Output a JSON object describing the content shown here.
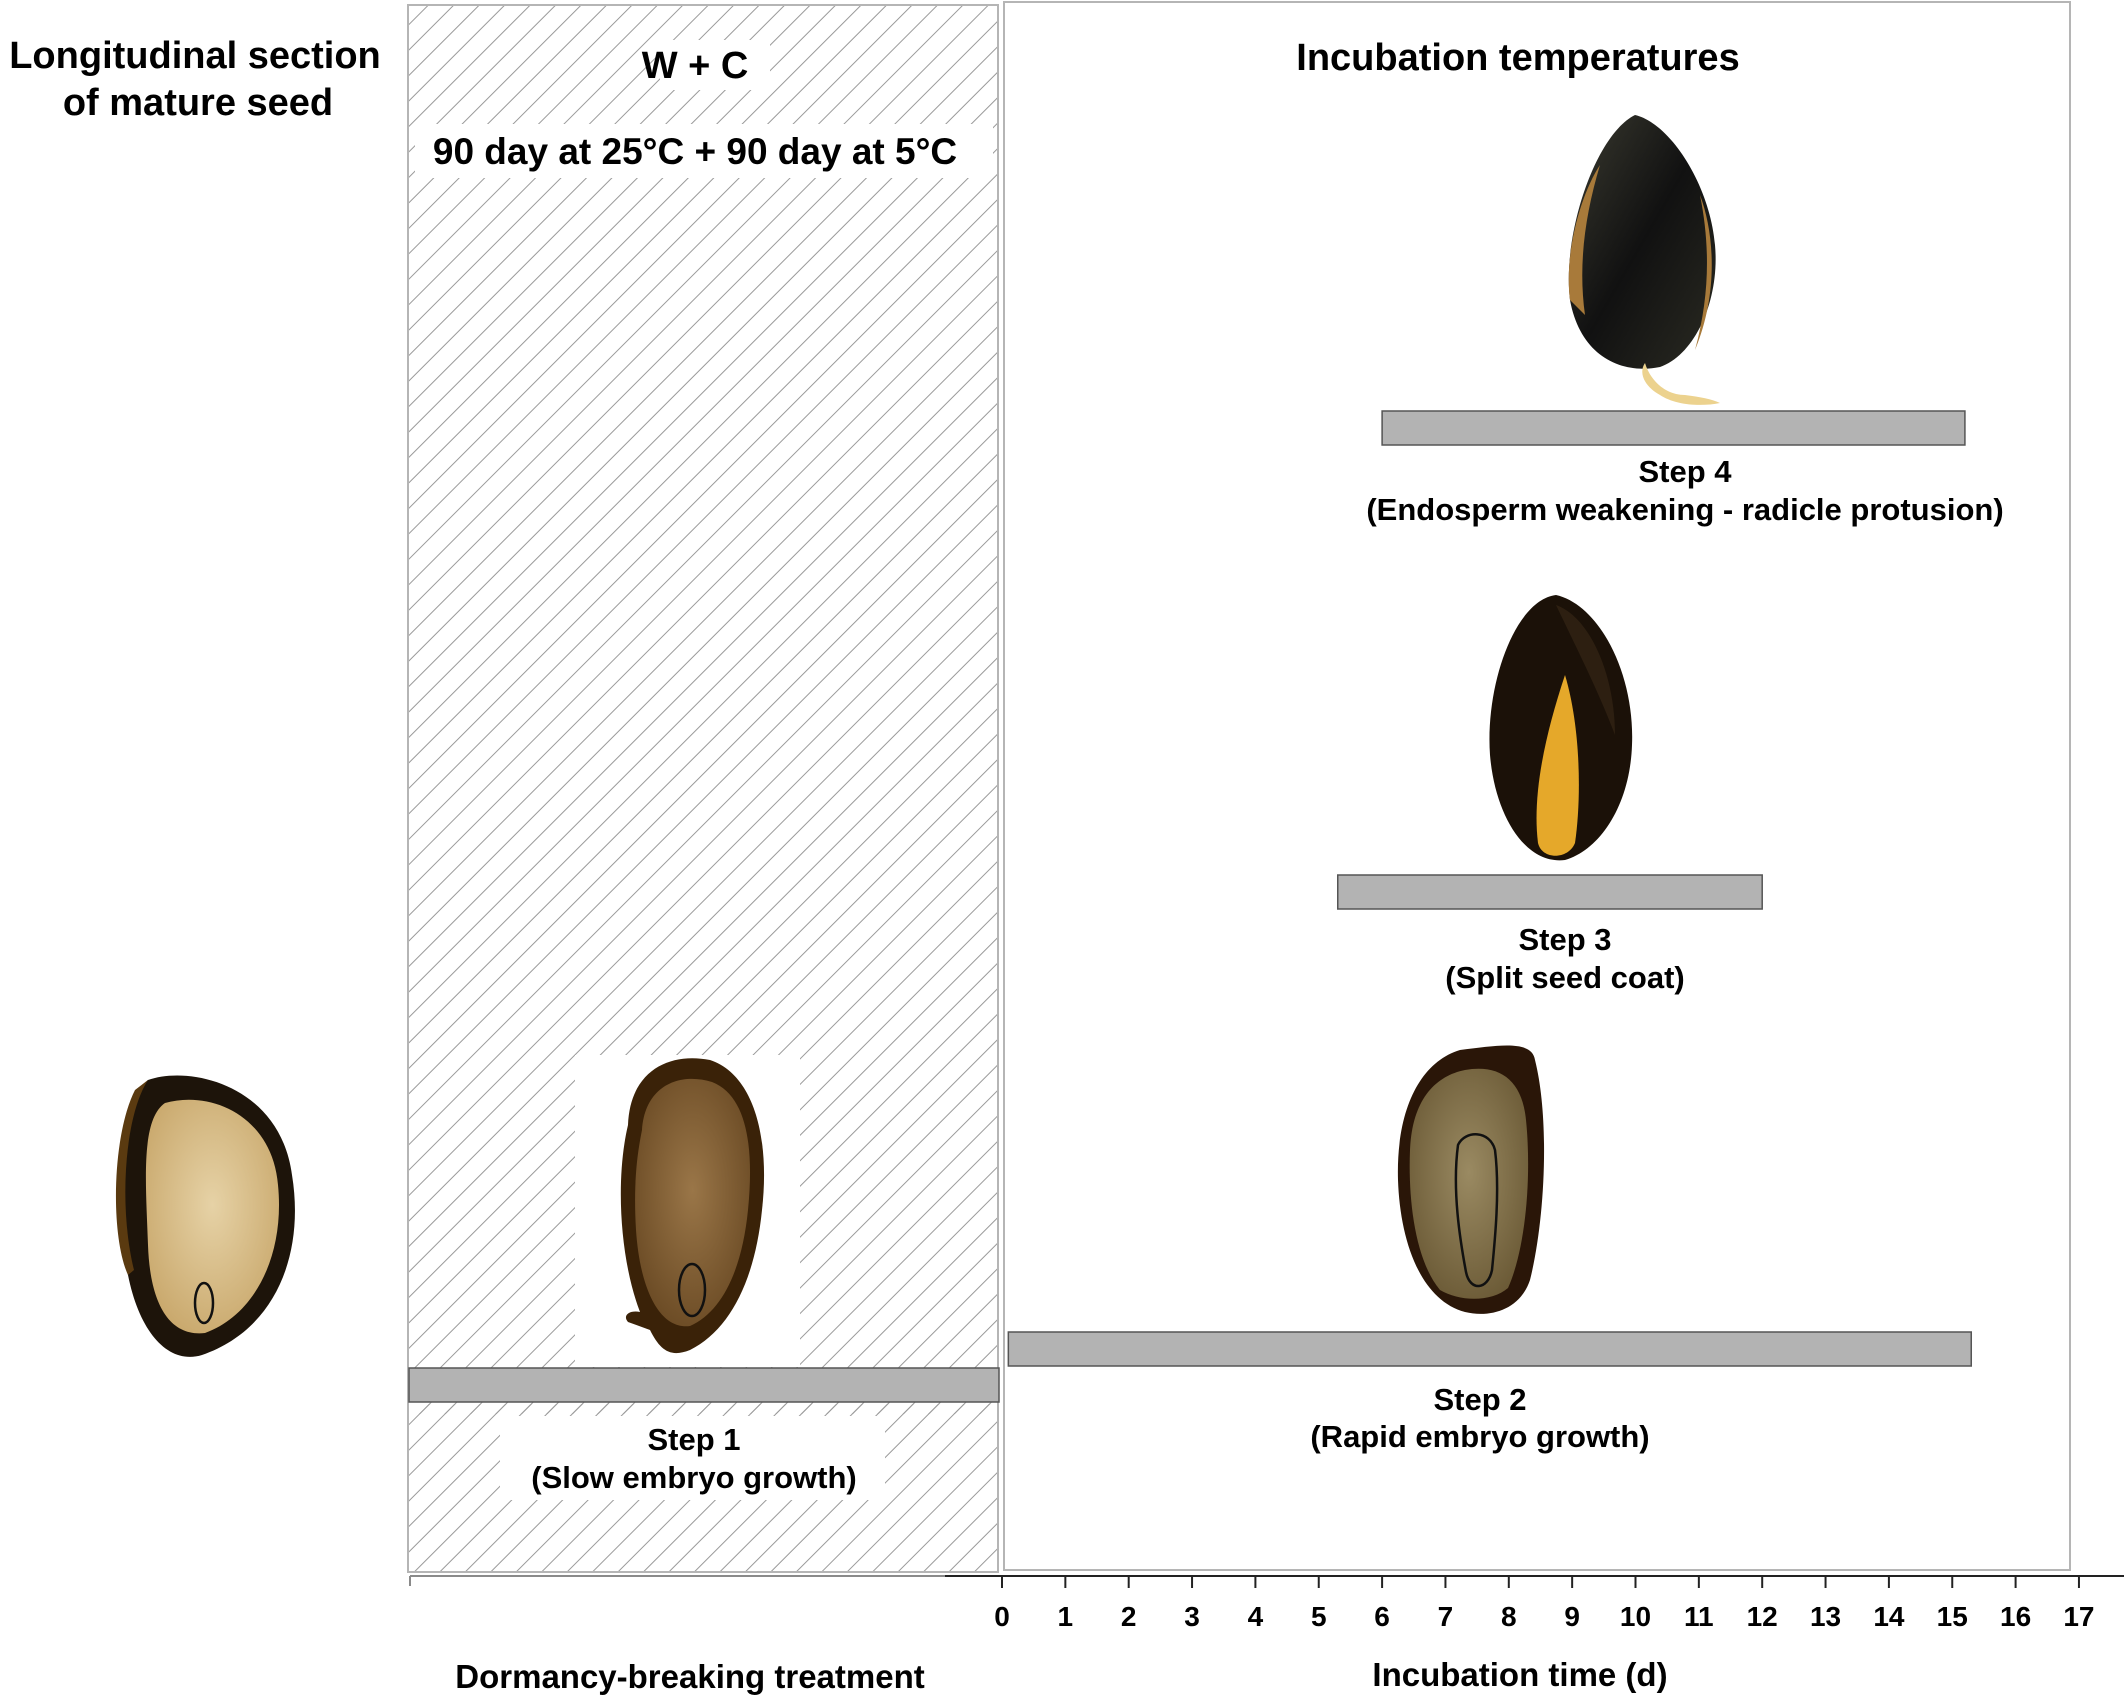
{
  "headings": {
    "mature_seed": [
      "Longitudinal section",
      "of mature seed"
    ],
    "treatment_name": "W + C",
    "treatment_detail": "90 day at 25°C + 90 day at 5°C",
    "incubation": "Incubation temperatures"
  },
  "steps": [
    {
      "title": "Step 1",
      "desc": "(Slow embryo growth)"
    },
    {
      "title": "Step 2",
      "desc": "(Rapid embryo growth)"
    },
    {
      "title": "Step 3",
      "desc": "(Split seed coat)"
    },
    {
      "title": "Step 4",
      "desc": "(Endosperm weakening - radicle protusion)"
    }
  ],
  "stage_bars": [
    {
      "step": "Step 2",
      "start_day": 0.1,
      "end_day": 15.3
    },
    {
      "step": "Step 3",
      "start_day": 5.3,
      "end_day": 12.0
    },
    {
      "step": "Step 4",
      "start_day": 6.0,
      "end_day": 15.2
    }
  ],
  "axis": {
    "ticks": [
      0,
      1,
      2,
      3,
      4,
      5,
      6,
      7,
      8,
      9,
      10,
      11,
      12,
      13,
      14,
      15,
      16,
      17
    ],
    "left_label": "Dormancy-breaking treatment",
    "right_label": "Incubation time (d)"
  },
  "colors": {
    "bar_fill": "#b3b3b3",
    "hatch": "#9a9a9a",
    "seed_coat": "#2a1a0d",
    "endosperm": "#d8c08e"
  },
  "icons": [
    "mature-seed-section-image",
    "step1-seed-section-image",
    "step2-seed-section-image",
    "step3-split-seed-image",
    "step4-germinating-seed-image"
  ]
}
